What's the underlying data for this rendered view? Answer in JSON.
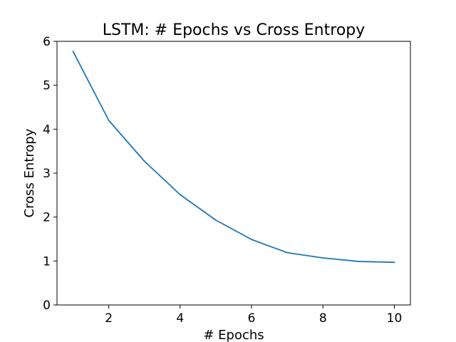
{
  "chart_data": {
    "type": "line",
    "title": "LSTM: # Epochs vs Cross Entropy",
    "xlabel": "# Epochs",
    "ylabel": "Cross Entropy",
    "xlim": [
      0.55,
      10.45
    ],
    "ylim": [
      0,
      6
    ],
    "xticks": [
      2,
      4,
      6,
      8,
      10
    ],
    "yticks": [
      0,
      1,
      2,
      3,
      4,
      5,
      6
    ],
    "grid": false,
    "series": [
      {
        "color": "#1f77b4",
        "x": [
          1,
          2,
          3,
          4,
          5,
          6,
          7,
          8,
          9,
          10
        ],
        "y": [
          5.77,
          4.2,
          3.27,
          2.51,
          1.93,
          1.49,
          1.19,
          1.07,
          0.99,
          0.97
        ]
      }
    ]
  }
}
